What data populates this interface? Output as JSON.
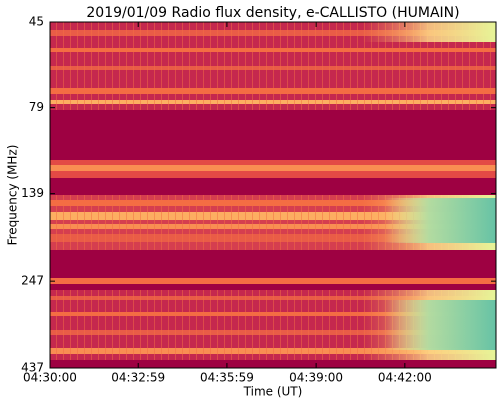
{
  "chart_data": {
    "type": "spectrogram",
    "title": "2019/01/09  Radio flux density, e-CALLISTO (HUMAIN)",
    "x_label": "Time (UT)",
    "y_label": "Frequency (MHz)",
    "xlim": [
      "04:30:00",
      "04:45:05"
    ],
    "xticks": [
      "04:30:00",
      "04:32:59",
      "04:35:59",
      "04:39:00",
      "04:42:00"
    ],
    "ylim": [
      437,
      45
    ],
    "yticks": [
      45,
      79,
      139,
      247,
      437
    ],
    "yscale": "log"
  }
}
